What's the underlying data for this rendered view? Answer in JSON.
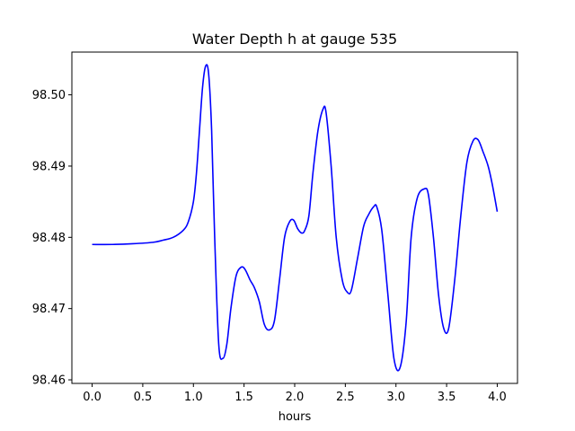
{
  "chart_data": {
    "type": "line",
    "title": "Water Depth h at gauge 535",
    "xlabel": "hours",
    "ylabel": "",
    "xlim": [
      -0.2,
      4.2
    ],
    "ylim": [
      98.4595,
      98.506
    ],
    "xticks": [
      0.0,
      0.5,
      1.0,
      1.5,
      2.0,
      2.5,
      3.0,
      3.5,
      4.0
    ],
    "xtick_labels": [
      "0.0",
      "0.5",
      "1.0",
      "1.5",
      "2.0",
      "2.5",
      "3.0",
      "3.5",
      "4.0"
    ],
    "yticks": [
      98.46,
      98.47,
      98.48,
      98.49,
      98.5
    ],
    "ytick_labels": [
      "98.46",
      "98.47",
      "98.48",
      "98.49",
      "98.50"
    ],
    "grid": false,
    "legend": "none",
    "series": [
      {
        "color": "#0000ff",
        "x": [
          0.0,
          0.2,
          0.4,
          0.6,
          0.7,
          0.8,
          0.9,
          0.95,
          1.0,
          1.03,
          1.06,
          1.09,
          1.12,
          1.15,
          1.18,
          1.21,
          1.25,
          1.29,
          1.33,
          1.37,
          1.42,
          1.47,
          1.51,
          1.56,
          1.6,
          1.65,
          1.7,
          1.75,
          1.8,
          1.85,
          1.9,
          1.95,
          1.99,
          2.03,
          2.07,
          2.1,
          2.14,
          2.18,
          2.23,
          2.28,
          2.31,
          2.36,
          2.41,
          2.47,
          2.52,
          2.56,
          2.62,
          2.68,
          2.73,
          2.78,
          2.81,
          2.86,
          2.92,
          2.98,
          3.04,
          3.1,
          3.15,
          3.21,
          3.28,
          3.32,
          3.37,
          3.42,
          3.47,
          3.52,
          3.58,
          3.64,
          3.7,
          3.76,
          3.81,
          3.86,
          3.91,
          3.95,
          4.0
        ],
        "y": [
          98.479,
          98.479,
          98.4791,
          98.4793,
          98.4796,
          98.48,
          98.481,
          98.4822,
          98.485,
          98.489,
          98.495,
          98.501,
          98.504,
          98.503,
          98.495,
          98.48,
          98.465,
          98.463,
          98.465,
          98.47,
          98.4745,
          98.4758,
          98.4755,
          98.474,
          98.473,
          98.471,
          98.4678,
          98.467,
          98.4683,
          98.474,
          98.48,
          98.4822,
          98.4824,
          98.4812,
          98.4806,
          98.481,
          98.483,
          98.489,
          98.495,
          98.498,
          98.4975,
          98.49,
          98.48,
          98.474,
          98.4723,
          98.4726,
          98.477,
          98.4815,
          98.4832,
          98.4843,
          98.4843,
          98.481,
          98.472,
          98.463,
          98.4617,
          98.468,
          98.48,
          98.4855,
          98.4868,
          98.486,
          98.48,
          98.472,
          98.4673,
          98.4672,
          98.474,
          98.483,
          98.4905,
          98.4935,
          98.4937,
          98.492,
          98.49,
          98.4875,
          98.4836
        ]
      }
    ]
  }
}
